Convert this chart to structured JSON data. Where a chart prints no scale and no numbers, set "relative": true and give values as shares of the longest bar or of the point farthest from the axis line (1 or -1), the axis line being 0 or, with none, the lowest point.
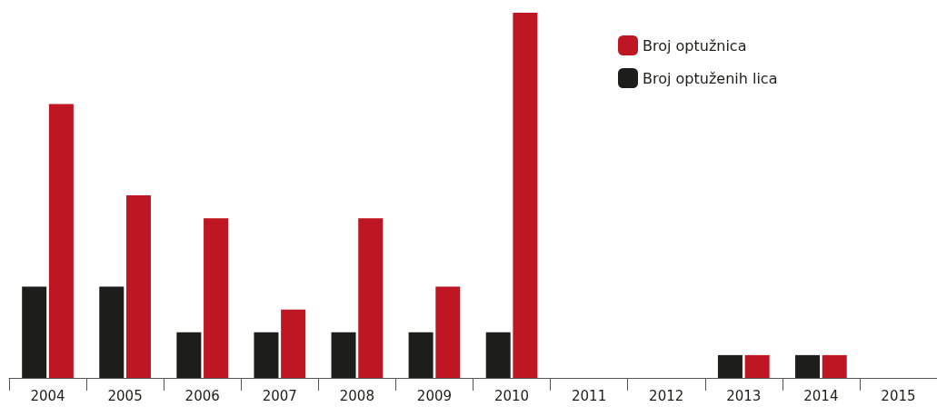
{
  "chart_data": {
    "type": "bar",
    "relative": true,
    "legend": "top right",
    "categories": [
      "2004",
      "2005",
      "2006",
      "2007",
      "2008",
      "2009",
      "2010",
      "2011",
      "2012",
      "2013",
      "2014",
      "2015"
    ],
    "series": [
      {
        "name": "Broj optuženih lica",
        "color": "#1d1d1b",
        "values": [
          0.25,
          0.25,
          0.125,
          0.125,
          0.125,
          0.125,
          0.125,
          0,
          0,
          0.0625,
          0.0625,
          0
        ]
      },
      {
        "name": "Broj optužnica",
        "color": "#be1622",
        "values": [
          0.75,
          0.5,
          0.4375,
          0.1875,
          0.4375,
          0.25,
          1,
          0,
          0,
          0.0625,
          0.0625,
          0
        ]
      }
    ]
  }
}
